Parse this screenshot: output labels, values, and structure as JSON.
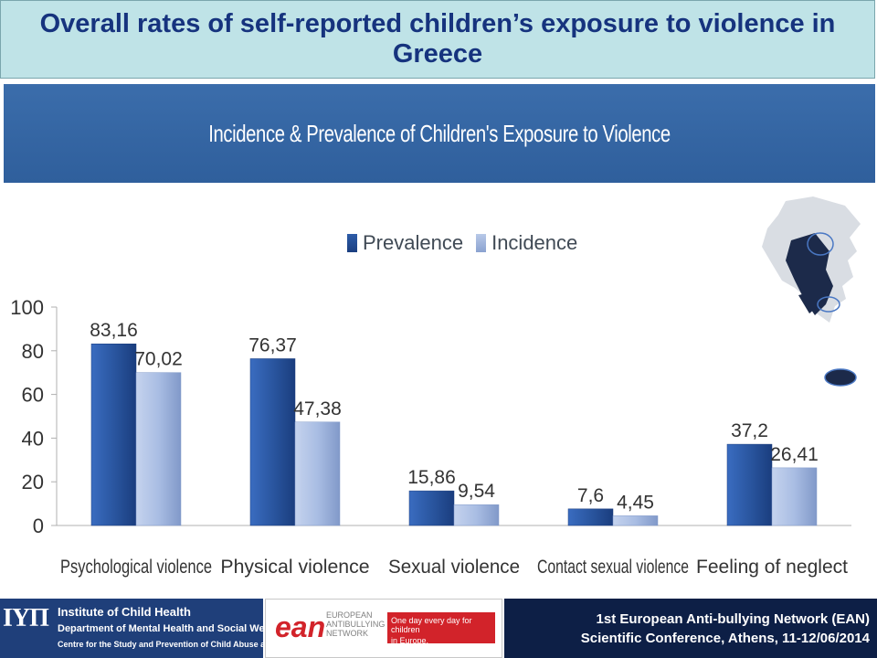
{
  "slide_title": "Overall rates of self-reported children’s exposure to violence in Greece",
  "chart_header": "Incidence & Prevalence of Children's Exposure to Violence",
  "legend": {
    "prevalence": "Prevalence",
    "incidence": "Incidence"
  },
  "colors": {
    "prevalence": "#2a56a0",
    "incidence": "#a9bde3",
    "header": "#3366a6",
    "title_bg": "#bfe3e7",
    "title_text": "#16337e"
  },
  "chart_data": {
    "type": "bar",
    "categories": [
      "Psychological violence",
      "Physical violence",
      "Sexual violence",
      "Contact sexual violence",
      "Feeling of neglect"
    ],
    "series": [
      {
        "name": "Prevalence",
        "values": [
          83.16,
          76.37,
          15.86,
          7.6,
          37.2
        ],
        "labels": [
          "83,16",
          "76,37",
          "15,86",
          "7,6",
          "37,2"
        ]
      },
      {
        "name": "Incidence",
        "values": [
          70.02,
          47.38,
          9.54,
          4.45,
          26.41
        ],
        "labels": [
          "70,02",
          "47,38",
          "9,54",
          "4,45",
          "26,41"
        ]
      }
    ],
    "ylim": [
      0,
      100
    ],
    "yticks": [
      0,
      20,
      40,
      60,
      80,
      100
    ],
    "legend": "top",
    "grid": false
  },
  "footer": {
    "ich_logo": "ΙΥΠ",
    "ich_line1": "Institute of Child Health",
    "ich_line2": "Department of Mental Health and Social Welfare",
    "ich_line3": "Centre for the Study and Prevention of Child Abuse and Neglect",
    "ean_logo": "ean",
    "ean_line1": "EUROPEAN",
    "ean_line2": "ANTIBULLYING",
    "ean_line3": "NETWORK",
    "ean_slogan1": "One day every day for children",
    "ean_slogan2": "in Europe,",
    "conference_line1": "1st European Anti-bullying Network (EAN)",
    "conference_line2": "Scientific Conference, Athens, 11-12/06/2014"
  }
}
